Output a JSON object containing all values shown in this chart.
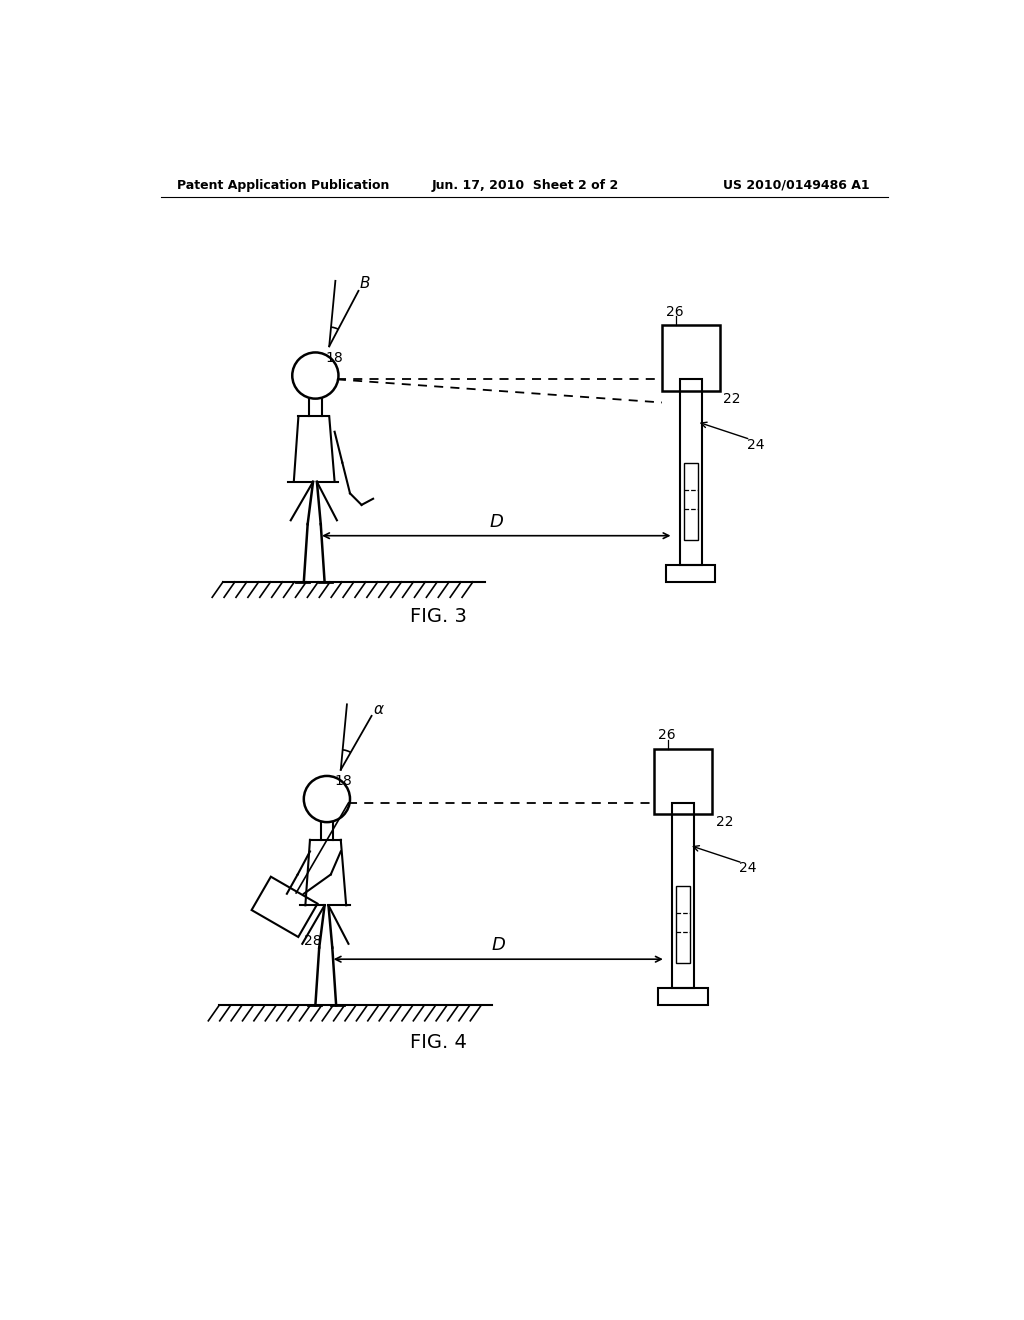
{
  "bg_color": "#ffffff",
  "line_color": "#000000",
  "header_left": "Patent Application Publication",
  "header_center": "Jun. 17, 2010  Sheet 2 of 2",
  "header_right": "US 2010/0149486 A1",
  "fig3_label": "FIG. 3",
  "fig4_label": "FIG. 4"
}
